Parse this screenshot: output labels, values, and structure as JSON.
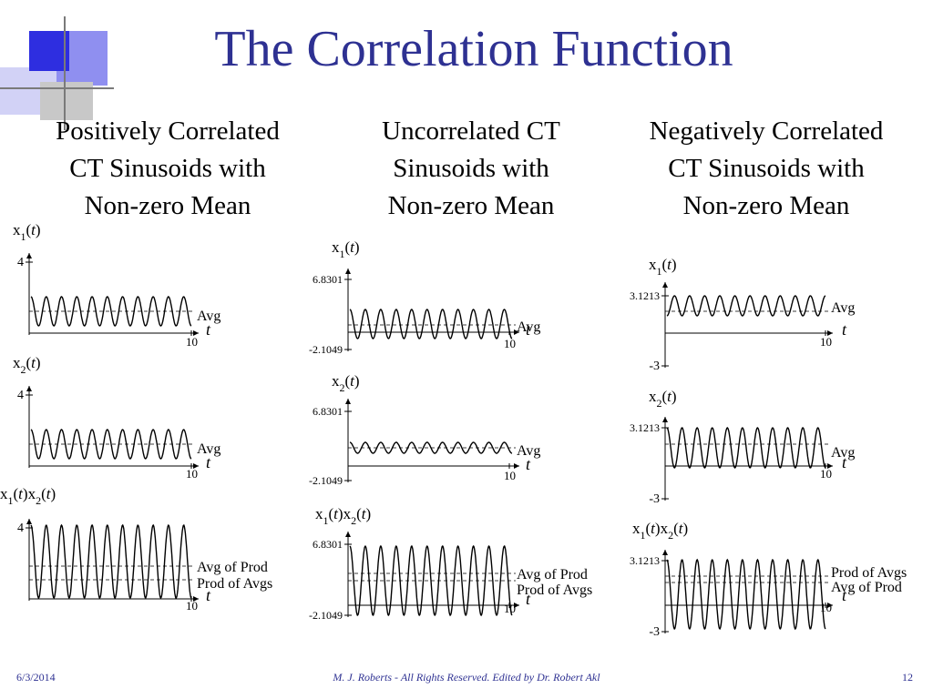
{
  "slide": {
    "title": "The Correlation Function",
    "colors": {
      "title": "#2e3192",
      "footer": "#2e3192",
      "deco_dark": "#2e2ee0",
      "deco_mid": "#8f8ff0",
      "deco_light": "#d2d2f6",
      "deco_gray": "#bdbdbd"
    }
  },
  "columns": [
    {
      "heading": [
        "Positively Correlated",
        "CT Sinusoids with",
        "Non-zero Mean"
      ],
      "plots": [
        {
          "ylabel_base": "x",
          "ylabel_sub": "1",
          "ylabel_arg": "t",
          "ticks": [
            "4"
          ],
          "labels": [
            "Avg"
          ],
          "xtick": "10",
          "xlabel": "t"
        },
        {
          "ylabel_base": "x",
          "ylabel_sub": "2",
          "ylabel_arg": "t",
          "ticks": [
            "4"
          ],
          "labels": [
            "Avg"
          ],
          "xtick": "10",
          "xlabel": "t"
        },
        {
          "ylabel_base": "x",
          "ylabel_sub": "1",
          "ylabel_arg": "t",
          "ylabel_base2": "x",
          "ylabel_sub2": "2",
          "ticks": [
            "4"
          ],
          "labels": [
            "Avg of Prod",
            "Prod of Avgs"
          ],
          "xtick": "10",
          "xlabel": "t"
        }
      ]
    },
    {
      "heading": [
        "Uncorrelated CT",
        "Sinusoids with",
        "Non-zero Mean"
      ],
      "plots": [
        {
          "ylabel_base": "x",
          "ylabel_sub": "1",
          "ylabel_arg": "t",
          "ticks": [
            "6.8301",
            "-2.1049"
          ],
          "labels": [
            "Avg"
          ],
          "xtick": "10",
          "xlabel": "t"
        },
        {
          "ylabel_base": "x",
          "ylabel_sub": "2",
          "ylabel_arg": "t",
          "ticks": [
            "6.8301",
            "-2.1049"
          ],
          "labels": [
            "Avg"
          ],
          "xtick": "10",
          "xlabel": "t"
        },
        {
          "ylabel_base": "x",
          "ylabel_sub": "1",
          "ylabel_arg": "t",
          "ylabel_base2": "x",
          "ylabel_sub2": "2",
          "ticks": [
            "6.8301",
            "-2.1049"
          ],
          "labels": [
            "Avg of Prod",
            "Prod of Avgs"
          ],
          "xtick": "10",
          "xlabel": "t"
        }
      ]
    },
    {
      "heading": [
        "Negatively  Correlated",
        "CT Sinusoids with",
        "Non-zero Mean"
      ],
      "plots": [
        {
          "ylabel_base": "x",
          "ylabel_sub": "1",
          "ylabel_arg": "t",
          "ticks": [
            "3.1213",
            "-3"
          ],
          "labels": [
            "Avg"
          ],
          "xtick": "10",
          "xlabel": "t"
        },
        {
          "ylabel_base": "x",
          "ylabel_sub": "2",
          "ylabel_arg": "t",
          "ticks": [
            "3.1213",
            "-3"
          ],
          "labels": [
            "Avg"
          ],
          "xtick": "10",
          "xlabel": "t"
        },
        {
          "ylabel_base": "x",
          "ylabel_sub": "1",
          "ylabel_arg": "t",
          "ylabel_base2": "x",
          "ylabel_sub2": "2",
          "ticks": [
            "3.1213",
            "-3"
          ],
          "labels": [
            "Prod of Avgs",
            "Avg of Prod"
          ],
          "xtick": "10",
          "xlabel": "t"
        }
      ]
    }
  ],
  "footer": {
    "date": "6/3/2014",
    "credit": "M. J. Roberts - All Rights Reserved. Edited by Dr. Robert Akl",
    "page": "12"
  }
}
